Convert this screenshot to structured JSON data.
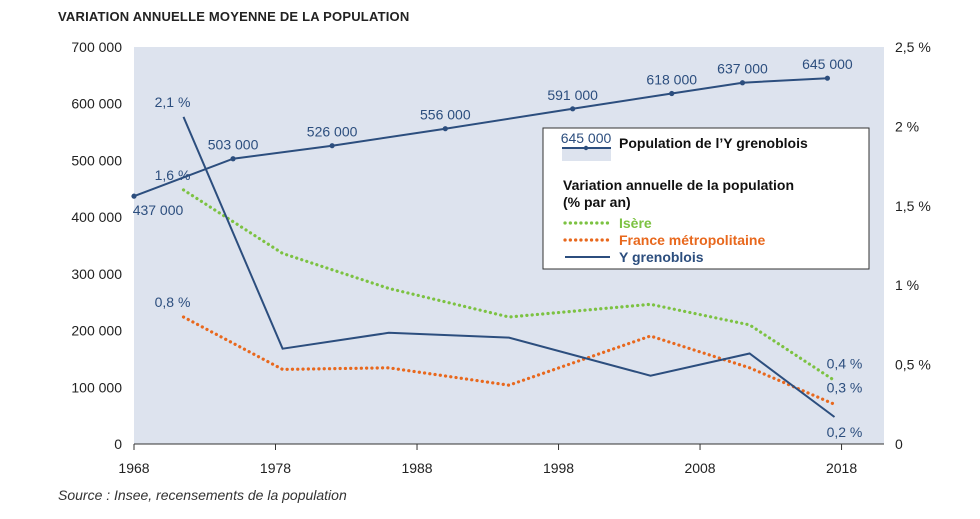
{
  "chart_data": {
    "type": "line",
    "title": "VARIATION ANNUELLE MOYENNE DE LA POPULATION",
    "source": "Source : Insee, recensements de la population",
    "x_ticks": [
      "1968",
      "1978",
      "1988",
      "1998",
      "2008",
      "2018"
    ],
    "y_left": {
      "lim": [
        0,
        700000
      ],
      "ticks": [
        "0",
        "100 000",
        "200 000",
        "300 000",
        "400 000",
        "500 000",
        "600 000",
        "700 000"
      ]
    },
    "y_right": {
      "lim": [
        0,
        2.5
      ],
      "ticks": [
        "0",
        "0,5 %",
        "1 %",
        "1,5 %",
        "2 %",
        "2,5 %"
      ]
    },
    "population": {
      "name": "Population de l’Y grenoblois",
      "color": "#2c4e7e",
      "area_color": "#dde3ee",
      "x": [
        1968,
        1975,
        1982,
        1990,
        1999,
        2006,
        2011,
        2017
      ],
      "y": [
        437000,
        503000,
        526000,
        556000,
        591000,
        618000,
        637000,
        645000
      ],
      "labels": [
        "437 000",
        "503 000",
        "526 000",
        "556 000",
        "591 000",
        "618 000",
        "637 000",
        "645 000"
      ]
    },
    "variation_series": [
      {
        "name": "Isère",
        "color": "#7cc242",
        "style": "dotted",
        "x": [
          1971.5,
          1978.5,
          1986,
          1994.5,
          2004.5,
          2011.5,
          2017.5
        ],
        "y": [
          1.6,
          1.2,
          0.98,
          0.8,
          0.88,
          0.75,
          0.4
        ],
        "start_label": "1,6 %",
        "end_label": "0,4 %"
      },
      {
        "name": "France métropolitaine",
        "color": "#e8681d",
        "style": "dotted",
        "x": [
          1971.5,
          1978.5,
          1986,
          1994.5,
          2004.5,
          2011.5,
          2017.5
        ],
        "y": [
          0.8,
          0.47,
          0.48,
          0.37,
          0.68,
          0.48,
          0.25
        ],
        "start_label": "0,8 %",
        "end_label": "0,3 %"
      },
      {
        "name": "Y grenoblois",
        "color": "#2c4e7e",
        "style": "solid",
        "x": [
          1971.5,
          1978.5,
          1986,
          1994.5,
          2004.5,
          2011.5,
          2017.5
        ],
        "y": [
          2.06,
          0.6,
          0.7,
          0.67,
          0.43,
          0.57,
          0.17
        ],
        "start_label": "2,1 %",
        "end_label": "0,2 %"
      }
    ],
    "legend": {
      "position": "top-right",
      "population_sample": "645 000",
      "population_label": "Population de l’Y grenoblois",
      "variation_title": "Variation annuelle de la population",
      "variation_subtitle": "(% par an)"
    }
  }
}
